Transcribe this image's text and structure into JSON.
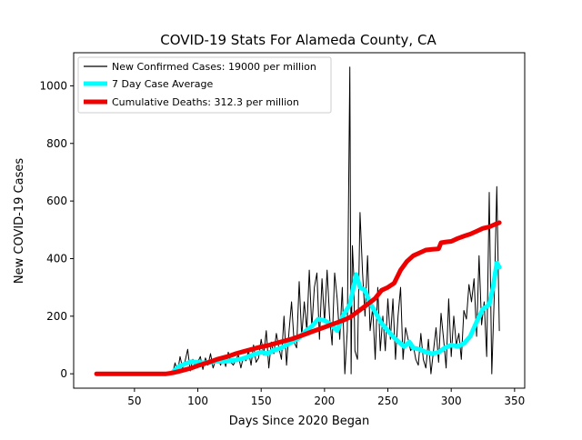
{
  "chart_data": {
    "type": "line",
    "title": "COVID-19 Stats For Alameda County, CA",
    "xlabel": "Days Since 2020 Began",
    "ylabel": "New COVID-19 Cases",
    "xlim": [
      2,
      358
    ],
    "ylim": [
      -50,
      1115
    ],
    "xticks": [
      50,
      100,
      150,
      200,
      250,
      300,
      350
    ],
    "yticks": [
      0,
      200,
      400,
      600,
      800,
      1000
    ],
    "grid": false,
    "legend_position": "top-left",
    "series": [
      {
        "name": "New Confirmed Cases: 19000 per million",
        "color": "#000000",
        "style": "thin",
        "x": [
          80,
          82,
          84,
          86,
          88,
          90,
          92,
          94,
          96,
          98,
          100,
          102,
          104,
          106,
          108,
          110,
          112,
          114,
          116,
          118,
          120,
          122,
          124,
          126,
          128,
          130,
          132,
          134,
          136,
          138,
          140,
          142,
          144,
          146,
          148,
          150,
          152,
          154,
          156,
          158,
          160,
          162,
          164,
          166,
          168,
          170,
          172,
          174,
          176,
          178,
          180,
          182,
          184,
          186,
          188,
          190,
          192,
          194,
          196,
          198,
          200,
          202,
          204,
          206,
          208,
          210,
          212,
          214,
          216,
          218,
          220,
          221,
          222,
          223,
          224,
          226,
          228,
          230,
          232,
          234,
          236,
          238,
          240,
          242,
          244,
          246,
          248,
          250,
          252,
          254,
          256,
          258,
          260,
          262,
          264,
          266,
          268,
          270,
          272,
          274,
          276,
          278,
          280,
          282,
          284,
          286,
          288,
          290,
          292,
          294,
          296,
          298,
          300,
          302,
          304,
          306,
          308,
          310,
          312,
          314,
          316,
          318,
          320,
          322,
          324,
          326,
          328,
          330,
          332,
          334,
          336,
          338
        ],
        "values": [
          0,
          38,
          5,
          60,
          20,
          45,
          85,
          10,
          50,
          25,
          40,
          60,
          15,
          55,
          30,
          70,
          20,
          45,
          55,
          30,
          60,
          25,
          75,
          40,
          30,
          50,
          65,
          20,
          60,
          45,
          80,
          30,
          100,
          40,
          55,
          120,
          65,
          150,
          20,
          110,
          70,
          140,
          90,
          50,
          200,
          30,
          150,
          250,
          110,
          90,
          320,
          130,
          250,
          150,
          360,
          160,
          300,
          350,
          120,
          330,
          180,
          360,
          200,
          100,
          350,
          260,
          120,
          300,
          0,
          150,
          1065,
          0,
          445,
          350,
          80,
          50,
          560,
          350,
          200,
          410,
          150,
          230,
          50,
          300,
          80,
          200,
          80,
          260,
          120,
          260,
          50,
          200,
          300,
          50,
          160,
          120,
          80,
          100,
          50,
          30,
          140,
          50,
          20,
          120,
          0,
          80,
          160,
          40,
          210,
          120,
          20,
          260,
          60,
          200,
          100,
          140,
          50,
          220,
          190,
          310,
          250,
          330,
          130,
          410,
          170,
          250,
          60,
          630,
          0,
          280,
          650,
          150
        ]
      },
      {
        "name": "7 Day Case Average",
        "color": "#00ffff",
        "style": "thick",
        "x": [
          80,
          85,
          90,
          95,
          100,
          105,
          110,
          115,
          120,
          125,
          130,
          135,
          140,
          145,
          150,
          155,
          160,
          165,
          170,
          175,
          180,
          185,
          190,
          195,
          200,
          205,
          210,
          215,
          220,
          225,
          228,
          232,
          236,
          240,
          245,
          250,
          255,
          260,
          263,
          267,
          270,
          275,
          280,
          285,
          290,
          295,
          300,
          305,
          310,
          315,
          320,
          325,
          330,
          333,
          336,
          338
        ],
        "values": [
          5,
          25,
          35,
          42,
          40,
          38,
          40,
          44,
          42,
          45,
          48,
          52,
          60,
          68,
          75,
          70,
          82,
          88,
          100,
          112,
          125,
          148,
          165,
          190,
          185,
          172,
          150,
          205,
          240,
          345,
          300,
          290,
          245,
          215,
          175,
          150,
          125,
          105,
          95,
          110,
          90,
          85,
          75,
          70,
          75,
          90,
          100,
          95,
          105,
          130,
          180,
          225,
          240,
          300,
          385,
          370
        ]
      },
      {
        "name": "Cumulative Deaths: 312.3 per million",
        "color": "#ee0000",
        "style": "thick",
        "x": [
          20,
          40,
          60,
          75,
          80,
          85,
          90,
          95,
          100,
          105,
          110,
          115,
          120,
          125,
          130,
          135,
          140,
          145,
          150,
          155,
          160,
          165,
          170,
          175,
          180,
          185,
          190,
          195,
          200,
          205,
          210,
          215,
          220,
          225,
          230,
          235,
          240,
          245,
          250,
          255,
          260,
          265,
          270,
          275,
          280,
          285,
          290,
          292,
          296,
          300,
          305,
          310,
          315,
          320,
          325,
          330,
          335,
          338
        ],
        "values": [
          0,
          0,
          0,
          0,
          3,
          8,
          14,
          20,
          28,
          35,
          42,
          50,
          56,
          62,
          70,
          76,
          82,
          88,
          94,
          98,
          104,
          110,
          116,
          122,
          130,
          138,
          146,
          154,
          162,
          170,
          178,
          186,
          196,
          212,
          228,
          245,
          262,
          290,
          300,
          315,
          360,
          390,
          410,
          420,
          430,
          432,
          434,
          455,
          458,
          460,
          470,
          478,
          485,
          495,
          505,
          510,
          520,
          525
        ]
      }
    ]
  }
}
